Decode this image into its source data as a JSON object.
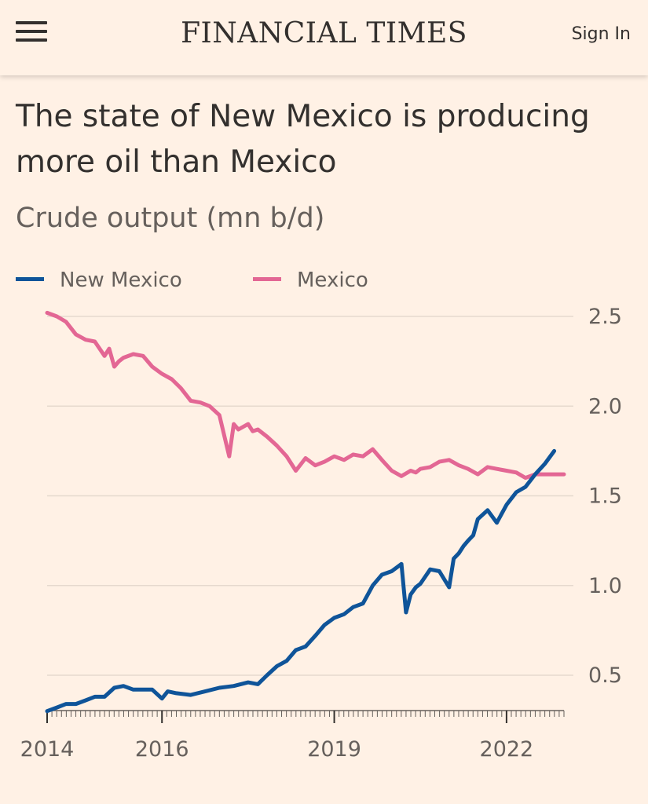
{
  "header": {
    "masthead": "FINANCIAL TIMES",
    "sign_in_label": "Sign In",
    "menu_icon": "hamburger-menu-icon"
  },
  "colors": {
    "background": "#FFF1E5",
    "new_mexico": "#0F5499",
    "mexico": "#E36794",
    "grid": "#E6D9CE",
    "text": "#33302E",
    "muted": "#66605C"
  },
  "chart_data": {
    "type": "line",
    "title": "The state of New Mexico is producing more oil than Mexico",
    "subtitle": "Crude output (mn b/d)",
    "legend_position": "top-left",
    "y_axis_side": "right",
    "grid": "horizontal",
    "ylim": [
      0.3,
      2.55
    ],
    "yticks": [
      0.5,
      1.0,
      1.5,
      2.0,
      2.5
    ],
    "ytick_labels": [
      "0.5",
      "1.0",
      "1.5",
      "2.0",
      "2.5"
    ],
    "xlim": [
      2014.0,
      2023.0
    ],
    "xticks": [
      2014,
      2016,
      2019,
      2022
    ],
    "xtick_labels": [
      "2014",
      "2016",
      "2019",
      "2022"
    ],
    "series": [
      {
        "name": "New Mexico",
        "color": "#0F5499",
        "x": [
          2014.0,
          2014.17,
          2014.33,
          2014.5,
          2014.67,
          2014.83,
          2015.0,
          2015.17,
          2015.33,
          2015.5,
          2015.67,
          2015.83,
          2016.0,
          2016.1,
          2016.25,
          2016.5,
          2016.75,
          2017.0,
          2017.25,
          2017.5,
          2017.67,
          2017.83,
          2018.0,
          2018.17,
          2018.33,
          2018.5,
          2018.67,
          2018.83,
          2019.0,
          2019.17,
          2019.33,
          2019.5,
          2019.67,
          2019.83,
          2020.0,
          2020.17,
          2020.25,
          2020.33,
          2020.42,
          2020.5,
          2020.67,
          2020.83,
          2021.0,
          2021.08,
          2021.17,
          2021.25,
          2021.33,
          2021.42,
          2021.5,
          2021.67,
          2021.83,
          2022.0,
          2022.17,
          2022.33,
          2022.5,
          2022.67,
          2022.83
        ],
        "values": [
          0.3,
          0.32,
          0.34,
          0.34,
          0.36,
          0.38,
          0.38,
          0.43,
          0.44,
          0.42,
          0.42,
          0.42,
          0.37,
          0.41,
          0.4,
          0.39,
          0.41,
          0.43,
          0.44,
          0.46,
          0.45,
          0.5,
          0.55,
          0.58,
          0.64,
          0.66,
          0.72,
          0.78,
          0.82,
          0.84,
          0.88,
          0.9,
          1.0,
          1.06,
          1.08,
          1.12,
          0.85,
          0.95,
          0.99,
          1.01,
          1.09,
          1.08,
          0.99,
          1.15,
          1.18,
          1.22,
          1.25,
          1.28,
          1.37,
          1.42,
          1.35,
          1.45,
          1.52,
          1.55,
          1.62,
          1.68,
          1.75
        ]
      },
      {
        "name": "Mexico",
        "color": "#E36794",
        "x": [
          2014.0,
          2014.17,
          2014.33,
          2014.5,
          2014.67,
          2014.83,
          2015.0,
          2015.08,
          2015.17,
          2015.25,
          2015.33,
          2015.5,
          2015.67,
          2015.83,
          2016.0,
          2016.17,
          2016.33,
          2016.5,
          2016.67,
          2016.83,
          2017.0,
          2017.17,
          2017.25,
          2017.33,
          2017.5,
          2017.58,
          2017.67,
          2017.83,
          2018.0,
          2018.17,
          2018.33,
          2018.5,
          2018.67,
          2018.83,
          2019.0,
          2019.17,
          2019.33,
          2019.5,
          2019.67,
          2019.83,
          2020.0,
          2020.17,
          2020.33,
          2020.42,
          2020.5,
          2020.67,
          2020.83,
          2021.0,
          2021.17,
          2021.33,
          2021.5,
          2021.67,
          2021.83,
          2022.0,
          2022.17,
          2022.33,
          2022.5,
          2022.67,
          2022.83,
          2023.0
        ],
        "values": [
          2.52,
          2.5,
          2.47,
          2.4,
          2.37,
          2.36,
          2.28,
          2.32,
          2.22,
          2.25,
          2.27,
          2.29,
          2.28,
          2.22,
          2.18,
          2.15,
          2.1,
          2.03,
          2.02,
          2.0,
          1.95,
          1.72,
          1.9,
          1.87,
          1.9,
          1.86,
          1.87,
          1.83,
          1.78,
          1.72,
          1.64,
          1.71,
          1.67,
          1.69,
          1.72,
          1.7,
          1.73,
          1.72,
          1.76,
          1.7,
          1.64,
          1.61,
          1.64,
          1.63,
          1.65,
          1.66,
          1.69,
          1.7,
          1.67,
          1.65,
          1.62,
          1.66,
          1.65,
          1.64,
          1.63,
          1.6,
          1.62,
          1.62,
          1.62,
          1.62
        ]
      }
    ]
  }
}
